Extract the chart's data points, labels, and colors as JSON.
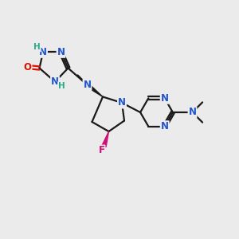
{
  "bg_color": "#ebebeb",
  "bond_color": "#1a1a1a",
  "N_color": "#2255cc",
  "O_color": "#dd1100",
  "F_color": "#cc1177",
  "H_color": "#2aaa88",
  "figsize": [
    3.0,
    3.0
  ],
  "dpi": 100,
  "xlim": [
    0,
    10
  ],
  "ylim": [
    0,
    10
  ]
}
